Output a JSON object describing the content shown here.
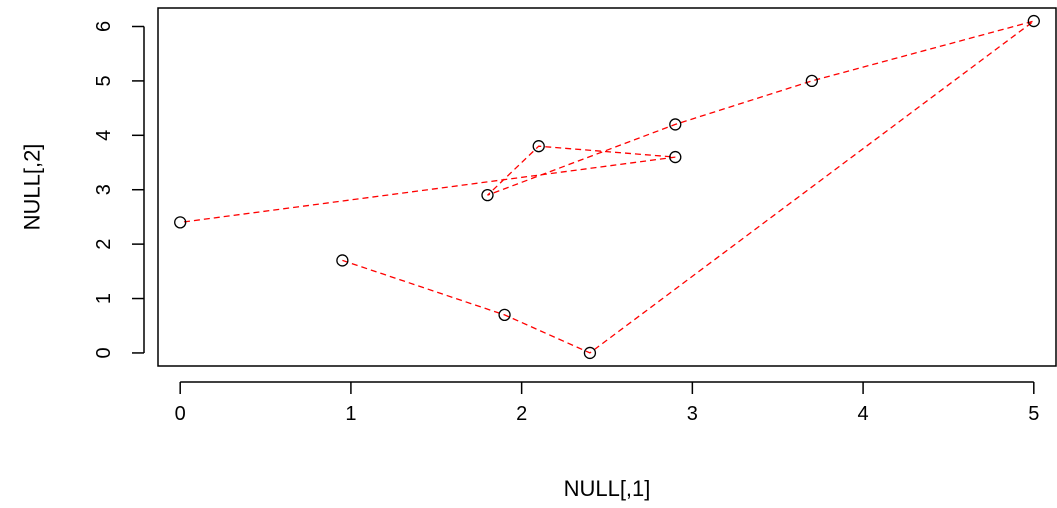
{
  "chart_data": {
    "type": "scatter",
    "title": "",
    "xlabel": "NULL[,1]",
    "ylabel": "NULL[,2]",
    "xlim": [
      -0.13,
      5.13
    ],
    "ylim": [
      -0.24,
      6.34
    ],
    "x_ticks": [
      0,
      1,
      2,
      3,
      4,
      5
    ],
    "y_ticks": [
      0,
      1,
      2,
      3,
      4,
      5,
      6
    ],
    "x_tick_labels": [
      "0",
      "1",
      "2",
      "3",
      "4",
      "5"
    ],
    "y_tick_labels": [
      "0",
      "1",
      "2",
      "3",
      "4",
      "5",
      "6"
    ],
    "grid": false,
    "legend": "none",
    "points": [
      {
        "x": 2.9,
        "y": 4.2
      },
      {
        "x": 3.7,
        "y": 5.0
      },
      {
        "x": 5.0,
        "y": 6.1
      },
      {
        "x": 2.4,
        "y": 0.0
      },
      {
        "x": 1.9,
        "y": 0.7
      },
      {
        "x": 0.95,
        "y": 1.7
      },
      {
        "x": 0.0,
        "y": 2.4
      },
      {
        "x": 2.9,
        "y": 3.6
      },
      {
        "x": 2.1,
        "y": 3.8
      },
      {
        "x": 1.8,
        "y": 2.9
      }
    ],
    "line_path_order": [
      5,
      4,
      3,
      2,
      1,
      0,
      9,
      8,
      7,
      6
    ],
    "line_color": "#ff0000",
    "line_style": "dashed",
    "marker": "open-circle",
    "marker_color": "#000000"
  }
}
